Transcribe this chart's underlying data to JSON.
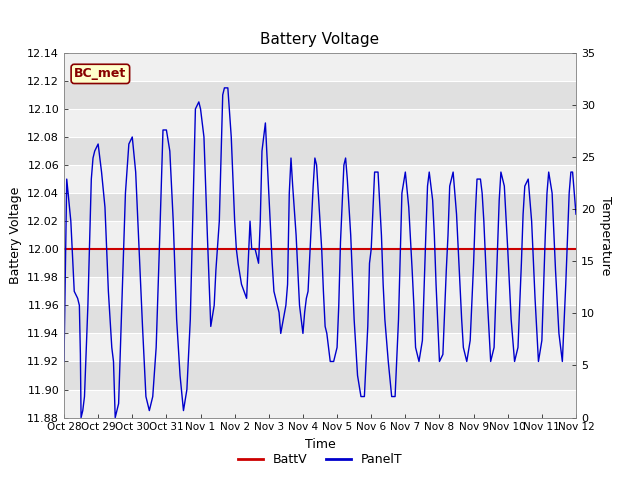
{
  "title": "Battery Voltage",
  "xlabel": "Time",
  "ylabel_left": "Battery Voltage",
  "ylabel_right": "Temperature",
  "ylim_left": [
    11.88,
    12.14
  ],
  "ylim_right": [
    0,
    35
  ],
  "yticks_left": [
    11.88,
    11.9,
    11.92,
    11.94,
    11.96,
    11.98,
    12.0,
    12.02,
    12.04,
    12.06,
    12.08,
    12.1,
    12.12,
    12.14
  ],
  "yticks_right": [
    0,
    5,
    10,
    15,
    20,
    25,
    30,
    35
  ],
  "batt_v": 12.0,
  "batt_color": "#cc0000",
  "panel_color": "#0000cc",
  "annotation_text": "BC_met",
  "annotation_bg": "#ffffcc",
  "annotation_border": "#880000",
  "legend_labels": [
    "BattV",
    "PanelT"
  ],
  "bg_color": "#ffffff",
  "band_colors": [
    "#f0f0f0",
    "#e0e0e0"
  ],
  "grid_color": "#ffffff",
  "x_start_days": 0,
  "x_end_days": 15.0,
  "xtick_positions": [
    0,
    1,
    2,
    3,
    4,
    5,
    6,
    7,
    8,
    9,
    10,
    11,
    12,
    13,
    14,
    15
  ],
  "xtick_labels": [
    "Oct 28",
    "Oct 29",
    "Oct 30",
    "Oct 31",
    "Nov 1",
    "Nov 2",
    "Nov 3",
    "Nov 4",
    "Nov 5",
    "Nov 6",
    "Nov 7",
    "Nov 8",
    "Nov 9",
    "Nov 10",
    "Nov 11",
    "Nov 12"
  ],
  "panel_t_data": [
    [
      0.0,
      11.92
    ],
    [
      0.08,
      12.05
    ],
    [
      0.2,
      12.02
    ],
    [
      0.3,
      11.97
    ],
    [
      0.4,
      11.965
    ],
    [
      0.45,
      11.96
    ],
    [
      0.48,
      11.925
    ],
    [
      0.5,
      11.88
    ],
    [
      0.55,
      11.885
    ],
    [
      0.6,
      11.895
    ],
    [
      0.7,
      11.96
    ],
    [
      0.8,
      12.05
    ],
    [
      0.85,
      12.065
    ],
    [
      0.9,
      12.07
    ],
    [
      1.0,
      12.075
    ],
    [
      1.1,
      12.055
    ],
    [
      1.2,
      12.03
    ],
    [
      1.3,
      11.97
    ],
    [
      1.35,
      11.95
    ],
    [
      1.4,
      11.93
    ],
    [
      1.45,
      11.92
    ],
    [
      1.5,
      11.88
    ],
    [
      1.6,
      11.89
    ],
    [
      1.7,
      11.965
    ],
    [
      1.8,
      12.04
    ],
    [
      1.9,
      12.075
    ],
    [
      2.0,
      12.08
    ],
    [
      2.1,
      12.055
    ],
    [
      2.2,
      12.0
    ],
    [
      2.3,
      11.945
    ],
    [
      2.4,
      11.895
    ],
    [
      2.5,
      11.885
    ],
    [
      2.6,
      11.895
    ],
    [
      2.7,
      11.93
    ],
    [
      2.8,
      12.005
    ],
    [
      2.9,
      12.085
    ],
    [
      3.0,
      12.085
    ],
    [
      3.1,
      12.07
    ],
    [
      3.2,
      12.02
    ],
    [
      3.3,
      11.95
    ],
    [
      3.4,
      11.91
    ],
    [
      3.5,
      11.885
    ],
    [
      3.6,
      11.9
    ],
    [
      3.7,
      11.95
    ],
    [
      3.85,
      12.1
    ],
    [
      3.95,
      12.105
    ],
    [
      4.0,
      12.1
    ],
    [
      4.1,
      12.08
    ],
    [
      4.2,
      12.01
    ],
    [
      4.3,
      11.945
    ],
    [
      4.4,
      11.96
    ],
    [
      4.45,
      11.985
    ],
    [
      4.55,
      12.02
    ],
    [
      4.65,
      12.11
    ],
    [
      4.7,
      12.115
    ],
    [
      4.8,
      12.115
    ],
    [
      4.9,
      12.08
    ],
    [
      5.0,
      12.02
    ],
    [
      5.05,
      12.0
    ],
    [
      5.1,
      11.99
    ],
    [
      5.2,
      11.975
    ],
    [
      5.35,
      11.965
    ],
    [
      5.45,
      12.02
    ],
    [
      5.5,
      12.0
    ],
    [
      5.6,
      12.0
    ],
    [
      5.7,
      11.99
    ],
    [
      5.75,
      12.02
    ],
    [
      5.8,
      12.07
    ],
    [
      5.9,
      12.09
    ],
    [
      6.0,
      12.04
    ],
    [
      6.1,
      11.99
    ],
    [
      6.15,
      11.97
    ],
    [
      6.3,
      11.955
    ],
    [
      6.35,
      11.94
    ],
    [
      6.5,
      11.96
    ],
    [
      6.55,
      11.975
    ],
    [
      6.6,
      12.04
    ],
    [
      6.65,
      12.065
    ],
    [
      6.7,
      12.045
    ],
    [
      6.8,
      12.01
    ],
    [
      6.85,
      11.985
    ],
    [
      6.9,
      11.96
    ],
    [
      7.0,
      11.94
    ],
    [
      7.05,
      11.955
    ],
    [
      7.1,
      11.965
    ],
    [
      7.15,
      11.97
    ],
    [
      7.2,
      11.995
    ],
    [
      7.3,
      12.045
    ],
    [
      7.35,
      12.065
    ],
    [
      7.4,
      12.06
    ],
    [
      7.5,
      12.02
    ],
    [
      7.55,
      12.0
    ],
    [
      7.6,
      11.97
    ],
    [
      7.65,
      11.945
    ],
    [
      7.7,
      11.94
    ],
    [
      7.8,
      11.92
    ],
    [
      7.9,
      11.92
    ],
    [
      8.0,
      11.93
    ],
    [
      8.05,
      11.96
    ],
    [
      8.1,
      12.005
    ],
    [
      8.2,
      12.06
    ],
    [
      8.25,
      12.065
    ],
    [
      8.3,
      12.05
    ],
    [
      8.4,
      12.01
    ],
    [
      8.5,
      11.95
    ],
    [
      8.6,
      11.91
    ],
    [
      8.7,
      11.895
    ],
    [
      8.8,
      11.895
    ],
    [
      8.9,
      11.945
    ],
    [
      8.95,
      11.99
    ],
    [
      9.0,
      12.0
    ],
    [
      9.1,
      12.055
    ],
    [
      9.2,
      12.055
    ],
    [
      9.3,
      12.01
    ],
    [
      9.35,
      11.975
    ],
    [
      9.4,
      11.95
    ],
    [
      9.5,
      11.92
    ],
    [
      9.6,
      11.895
    ],
    [
      9.7,
      11.895
    ],
    [
      9.8,
      11.95
    ],
    [
      9.85,
      11.995
    ],
    [
      9.9,
      12.04
    ],
    [
      10.0,
      12.055
    ],
    [
      10.1,
      12.03
    ],
    [
      10.2,
      11.985
    ],
    [
      10.25,
      11.96
    ],
    [
      10.3,
      11.93
    ],
    [
      10.4,
      11.92
    ],
    [
      10.5,
      11.935
    ],
    [
      10.6,
      12.01
    ],
    [
      10.65,
      12.045
    ],
    [
      10.7,
      12.055
    ],
    [
      10.8,
      12.035
    ],
    [
      10.85,
      12.01
    ],
    [
      10.9,
      11.975
    ],
    [
      11.0,
      11.92
    ],
    [
      11.1,
      11.925
    ],
    [
      11.2,
      11.985
    ],
    [
      11.25,
      12.01
    ],
    [
      11.3,
      12.045
    ],
    [
      11.4,
      12.055
    ],
    [
      11.5,
      12.025
    ],
    [
      11.6,
      11.975
    ],
    [
      11.65,
      11.95
    ],
    [
      11.7,
      11.93
    ],
    [
      11.8,
      11.92
    ],
    [
      11.9,
      11.935
    ],
    [
      12.0,
      11.99
    ],
    [
      12.05,
      12.025
    ],
    [
      12.1,
      12.05
    ],
    [
      12.2,
      12.05
    ],
    [
      12.25,
      12.04
    ],
    [
      12.3,
      12.02
    ],
    [
      12.4,
      11.965
    ],
    [
      12.5,
      11.92
    ],
    [
      12.6,
      11.93
    ],
    [
      12.7,
      12.0
    ],
    [
      12.75,
      12.035
    ],
    [
      12.8,
      12.055
    ],
    [
      12.9,
      12.045
    ],
    [
      13.0,
      12.0
    ],
    [
      13.1,
      11.95
    ],
    [
      13.2,
      11.92
    ],
    [
      13.3,
      11.93
    ],
    [
      13.4,
      11.99
    ],
    [
      13.45,
      12.025
    ],
    [
      13.5,
      12.045
    ],
    [
      13.6,
      12.05
    ],
    [
      13.7,
      12.02
    ],
    [
      13.8,
      11.965
    ],
    [
      13.9,
      11.92
    ],
    [
      14.0,
      11.935
    ],
    [
      14.1,
      12.01
    ],
    [
      14.15,
      12.04
    ],
    [
      14.2,
      12.055
    ],
    [
      14.3,
      12.04
    ],
    [
      14.4,
      11.985
    ],
    [
      14.5,
      11.94
    ],
    [
      14.6,
      11.92
    ],
    [
      14.7,
      11.975
    ],
    [
      14.8,
      12.04
    ],
    [
      14.85,
      12.055
    ],
    [
      14.9,
      12.055
    ],
    [
      15.0,
      12.025
    ]
  ]
}
